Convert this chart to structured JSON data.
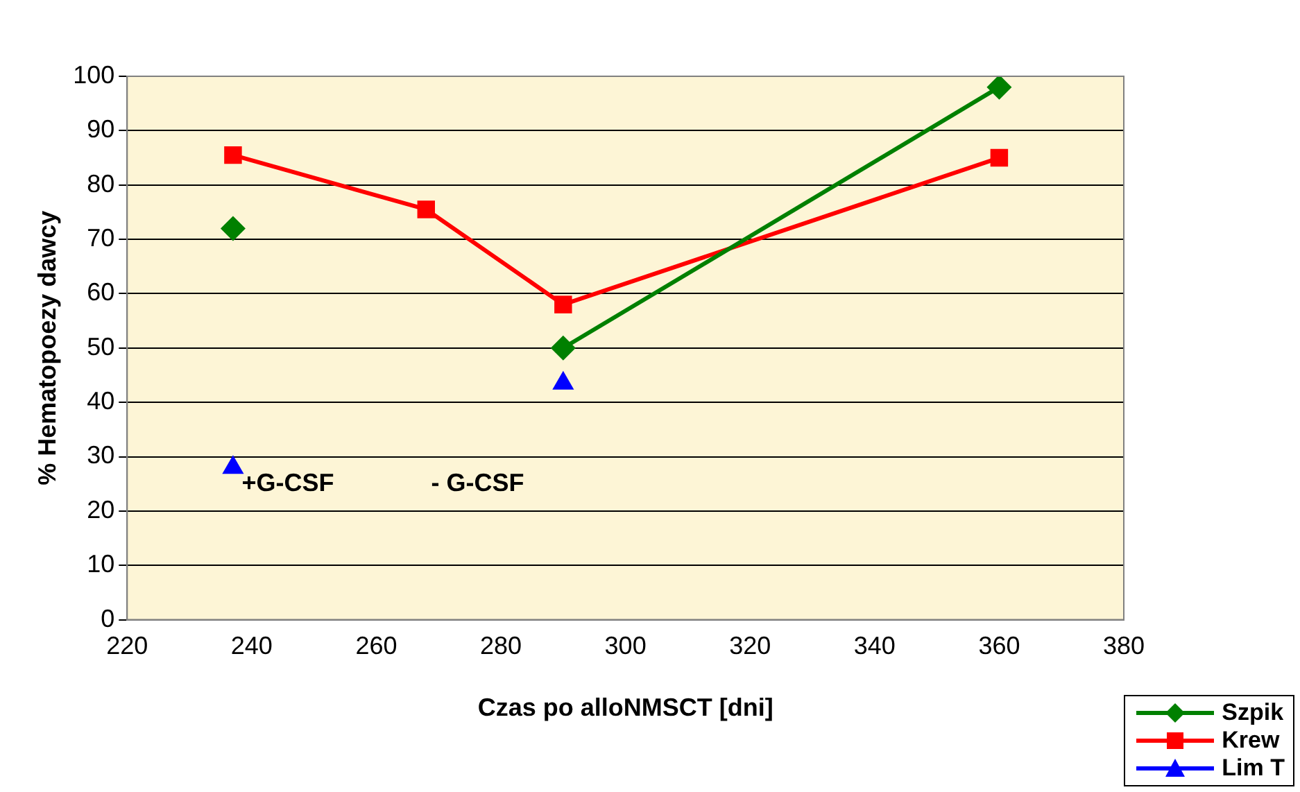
{
  "chart_data": {
    "type": "line",
    "xlabel": "Czas po alloNMSCT [dni]",
    "ylabel": "% Hematopoezy dawcy",
    "xlim": [
      220,
      380
    ],
    "xticks": [
      220,
      240,
      260,
      280,
      300,
      320,
      340,
      360,
      380
    ],
    "ylim": [
      0,
      100
    ],
    "yticks": [
      0,
      10,
      20,
      30,
      40,
      50,
      60,
      70,
      80,
      90,
      100
    ],
    "grid": "y",
    "legend": "bottom right",
    "series": [
      {
        "name": "Szpik",
        "color": "#008000",
        "marker": "diamond",
        "x": [
          237,
          268,
          290,
          360
        ],
        "values": [
          72,
          null,
          50,
          98
        ]
      },
      {
        "name": "Krew",
        "color": "#ff0000",
        "marker": "square",
        "x": [
          237,
          268,
          290,
          360
        ],
        "values": [
          85.5,
          75.5,
          58,
          85
        ]
      },
      {
        "name": "Lim T",
        "type": "scatter",
        "color": "#0000ff",
        "marker": "triangle",
        "x": [
          237,
          290
        ],
        "values": [
          28,
          43.5
        ]
      }
    ],
    "annotations": [
      "+G-CSF",
      "- G-CSF"
    ]
  }
}
